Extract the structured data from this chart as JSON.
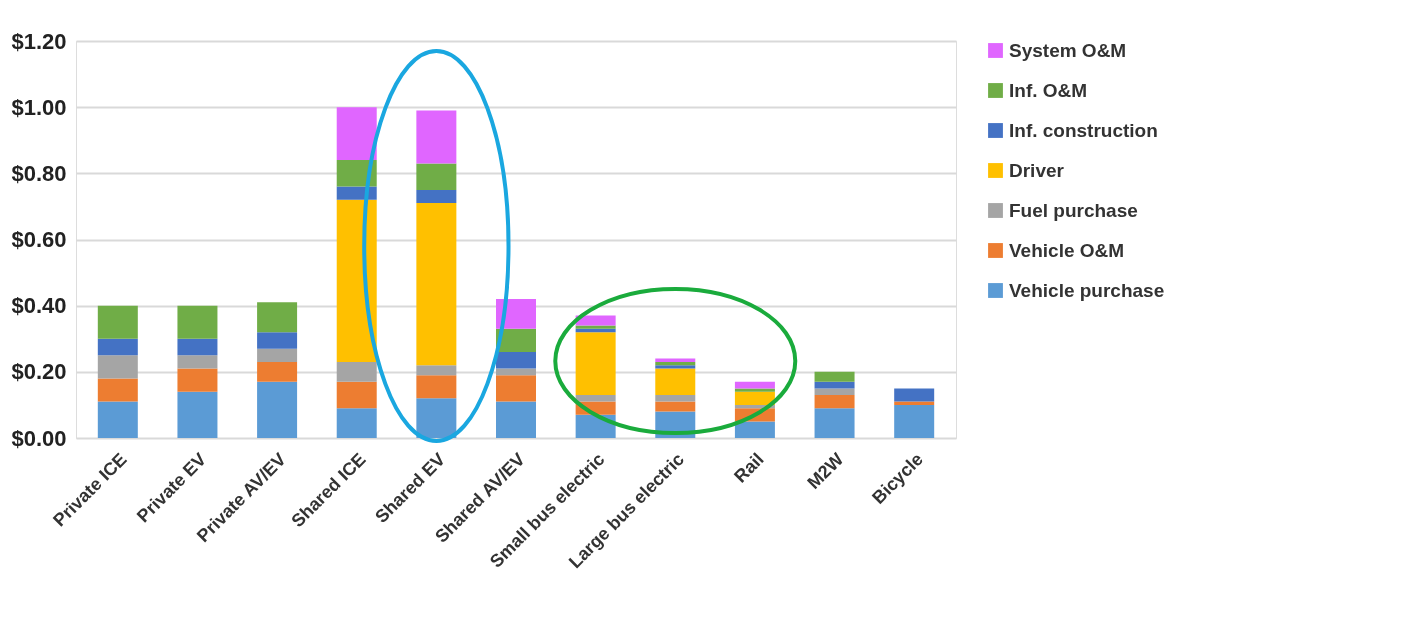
{
  "chart_data": {
    "type": "bar",
    "stacked": true,
    "legend": "right",
    "grid": "y",
    "categories": [
      "Private ICE",
      "Private EV",
      "Private AV/EV",
      "Shared ICE",
      "Shared EV",
      "Shared AV/EV",
      "Small bus electric",
      "Large bus electric",
      "Rail",
      "M2W",
      "Bicycle"
    ],
    "ylim": [
      0,
      1.2
    ],
    "yticks": [
      {
        "value": 0,
        "label": "$0.00"
      },
      {
        "value": 0.2,
        "label": "$0.20"
      },
      {
        "value": 0.4,
        "label": "$0.40"
      },
      {
        "value": 0.6,
        "label": "$0.60"
      },
      {
        "value": 0.8,
        "label": "$0.80"
      },
      {
        "value": 1.0,
        "label": "$1.00"
      },
      {
        "value": 1.2,
        "label": "$1.20"
      }
    ],
    "series": [
      {
        "name": "Vehicle purchase",
        "color": "#5b9bd5",
        "values": [
          0.11,
          0.14,
          0.17,
          0.09,
          0.12,
          0.11,
          0.07,
          0.08,
          0.05,
          0.09,
          0.1
        ]
      },
      {
        "name": "Vehicle O&M",
        "color": "#ed7d31",
        "values": [
          0.07,
          0.07,
          0.06,
          0.08,
          0.07,
          0.08,
          0.04,
          0.03,
          0.04,
          0.04,
          0.01
        ]
      },
      {
        "name": "Fuel purchase",
        "color": "#a5a5a5",
        "values": [
          0.07,
          0.04,
          0.04,
          0.06,
          0.03,
          0.02,
          0.02,
          0.02,
          0.01,
          0.02,
          0.0
        ]
      },
      {
        "name": "Driver",
        "color": "#ffc000",
        "values": [
          0,
          0,
          0,
          0.49,
          0.49,
          0,
          0.19,
          0.08,
          0.04,
          0,
          0
        ]
      },
      {
        "name": "Inf. construction",
        "color": "#4472c4",
        "values": [
          0.05,
          0.05,
          0.05,
          0.04,
          0.04,
          0.05,
          0.01,
          0.01,
          0.0,
          0.02,
          0.04
        ]
      },
      {
        "name": "Inf. O&M",
        "color": "#70ad47",
        "values": [
          0.1,
          0.1,
          0.09,
          0.08,
          0.08,
          0.07,
          0.01,
          0.01,
          0.01,
          0.03,
          0
        ]
      },
      {
        "name": "System O&M",
        "color": "#e066ff",
        "values": [
          0,
          0,
          0,
          0.16,
          0.16,
          0.09,
          0.03,
          0.01,
          0.02,
          0,
          0
        ]
      }
    ]
  }
}
